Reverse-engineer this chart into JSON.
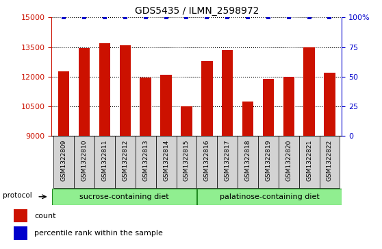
{
  "title": "GDS5435 / ILMN_2598972",
  "samples": [
    "GSM1322809",
    "GSM1322810",
    "GSM1322811",
    "GSM1322812",
    "GSM1322813",
    "GSM1322814",
    "GSM1322815",
    "GSM1322816",
    "GSM1322817",
    "GSM1322818",
    "GSM1322819",
    "GSM1322820",
    "GSM1322821",
    "GSM1322822"
  ],
  "counts": [
    12250,
    13450,
    13700,
    13580,
    11950,
    12080,
    10500,
    12780,
    13360,
    10750,
    11870,
    11980,
    13500,
    12180
  ],
  "percentiles": [
    100,
    100,
    100,
    100,
    100,
    100,
    100,
    100,
    100,
    100,
    100,
    100,
    100,
    100
  ],
  "bar_color": "#cc1100",
  "percentile_color": "#0000cc",
  "ylim_left": [
    9000,
    15000
  ],
  "ylim_right": [
    0,
    100
  ],
  "yticks_left": [
    9000,
    10500,
    12000,
    13500,
    15000
  ],
  "yticks_right": [
    0,
    25,
    50,
    75,
    100
  ],
  "groups": [
    {
      "label": "sucrose-containing diet",
      "start": 0,
      "end": 6,
      "color": "#90ee90"
    },
    {
      "label": "palatinose-containing diet",
      "start": 7,
      "end": 13,
      "color": "#90ee90"
    }
  ],
  "protocol_label": "protocol",
  "legend_count_label": "count",
  "legend_percentile_label": "percentile rank within the sample",
  "tick_bg_color": "#d3d3d3",
  "bar_width": 0.55,
  "group_border_color": "#228B22",
  "fig_width": 5.58,
  "fig_height": 3.63
}
